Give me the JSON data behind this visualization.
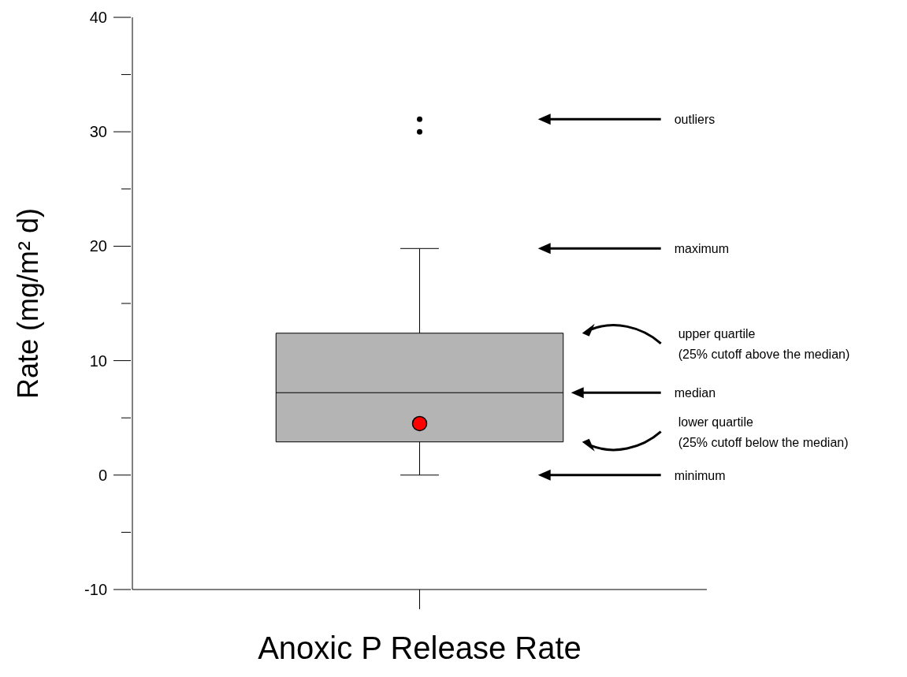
{
  "chart_data": {
    "type": "box",
    "xlabel": "Anoxic P Release Rate",
    "ylabel": "Rate (mg/m² d)",
    "categories": [
      null
    ],
    "color": "#b4b4b4",
    "boxes": [
      {
        "low": 0,
        "q1": 2.9,
        "median": 7.2,
        "q3": 12.4,
        "high": 19.8,
        "mean": 4.5,
        "outliers": [
          30,
          31.1
        ]
      }
    ],
    "ylim": [
      -10,
      40
    ],
    "yticks": [
      -10,
      {
        "value": -5,
        "label": null
      },
      0,
      {
        "value": 5,
        "label": null
      },
      10,
      {
        "value": 15,
        "label": null
      },
      20,
      {
        "value": 25,
        "label": null
      },
      30,
      {
        "value": 35,
        "label": null
      },
      40
    ],
    "grid": false,
    "annotations": [
      "outliers",
      "maximum",
      "upper quartile\n(25% cutoff above the median)",
      "median",
      "lower quartile\n(25% cutoff below the median)",
      "minimum"
    ]
  }
}
